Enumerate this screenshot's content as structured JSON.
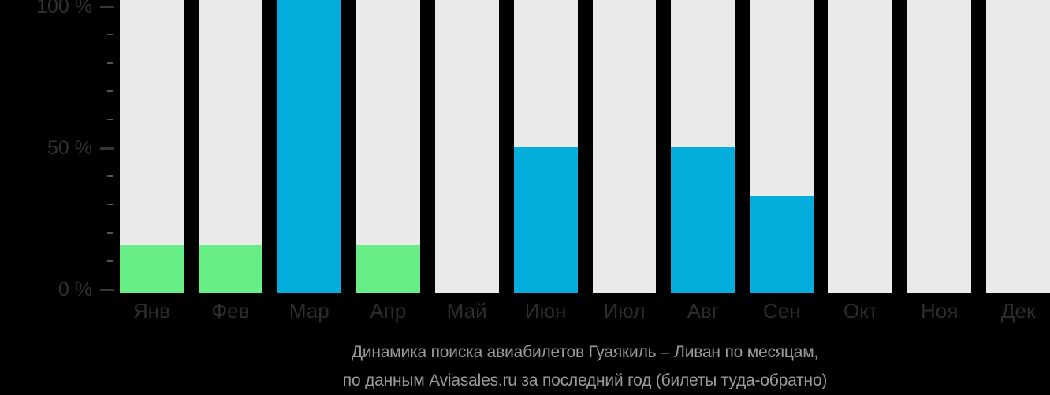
{
  "chart_data": {
    "type": "bar",
    "title": "Динамика поиска авиабилетов Гуаякиль – Ливан по месяцам, по данным Aviasales.ru за последний год (билеты туда-обратно)",
    "categories": [
      "Янв",
      "Фев",
      "Мар",
      "Апр",
      "Май",
      "Июн",
      "Июл",
      "Авг",
      "Сен",
      "Окт",
      "Ноя",
      "Дек"
    ],
    "values": [
      17,
      17,
      100,
      17,
      0,
      51,
      0,
      51,
      34,
      0,
      0,
      0
    ],
    "bar_colors": [
      "#68EE86",
      "#68EE86",
      "#03ADDC",
      "#68EE86",
      null,
      "#03ADDC",
      null,
      "#03ADDC",
      "#03ADDC",
      null,
      null,
      null
    ],
    "xlabel": "",
    "ylabel": "",
    "ylim": [
      0,
      100
    ],
    "y_ticks_major": [
      {
        "value": 0,
        "label": "0 %"
      },
      {
        "value": 50,
        "label": "50 %"
      },
      {
        "value": 100,
        "label": "100 %"
      }
    ],
    "y_minor_step": 10,
    "legend": "none",
    "grid": "off",
    "colors": {
      "background": "#000000",
      "track": "#EAEAEA",
      "bar_low_green": "#68EE86",
      "bar_high_blue": "#03ADDC",
      "axis_text": "#303033",
      "caption_text": "#9B9B9B"
    }
  },
  "caption": {
    "line1": "Динамика поиска авиабилетов Гуаякиль – Ливан по месяцам,",
    "line2": "по данным Aviasales.ru за последний год (билеты туда-обратно)"
  }
}
